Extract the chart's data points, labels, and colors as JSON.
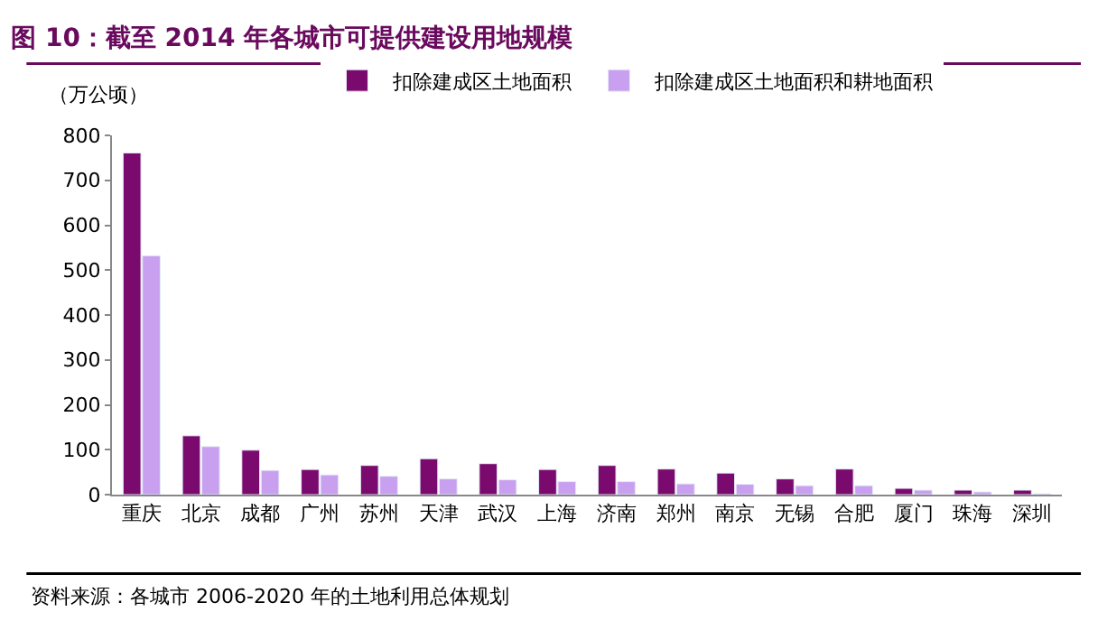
{
  "chart_data": {
    "type": "bar",
    "title": "图 10：截至 2014 年各城市可提供建设用地规模",
    "ylabel": "（万公顷）",
    "categories": [
      "重庆",
      "北京",
      "成都",
      "广州",
      "苏州",
      "天津",
      "武汉",
      "上海",
      "济南",
      "郑州",
      "南京",
      "无锡",
      "合肥",
      "厦门",
      "珠海",
      "深圳"
    ],
    "series": [
      {
        "name": "扣除建成区土地面积",
        "color": "#7b0a6e",
        "values": [
          761,
          131,
          99,
          56,
          65,
          80,
          69,
          56,
          65,
          57,
          48,
          35,
          57,
          14,
          10,
          10
        ]
      },
      {
        "name": "扣除建成区土地面积和耕地面积",
        "color": "#c9a0f0",
        "values": [
          532,
          107,
          54,
          44,
          41,
          35,
          33,
          29,
          29,
          24,
          23,
          20,
          20,
          10,
          6,
          2
        ]
      }
    ],
    "ylim": [
      0,
      800
    ],
    "yticks": [
      0,
      100,
      200,
      300,
      400,
      500,
      600,
      700,
      800
    ],
    "legend": "top",
    "annotations": [
      "资料来源：各城市 2006-2020 年的土地利用总体规划"
    ]
  }
}
